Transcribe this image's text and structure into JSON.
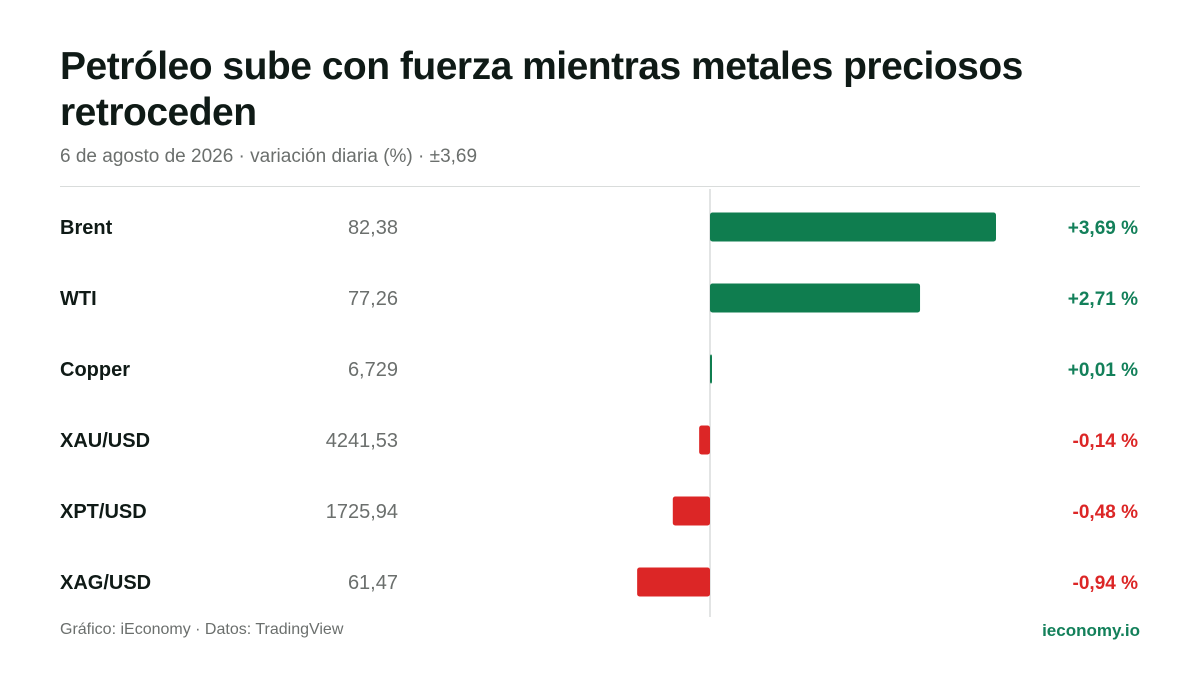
{
  "title": "Petróleo sube con fuerza mientras metales preciosos retroceden",
  "subtitle": "6 de agosto de 2026 · variación diaria (%) · ±3,69",
  "footer": {
    "source": "Gráfico: iEconomy · Datos: TradingView",
    "brand": "ieconomy.io"
  },
  "colors": {
    "positive": "#0f7d4f",
    "negative": "#dc2626",
    "positive_text": "#13805a",
    "negative_text": "#dc2626"
  },
  "chart_data": {
    "type": "bar",
    "orientation": "horizontal",
    "xlim": [
      -3.69,
      3.69
    ],
    "grid": false,
    "categories": [
      "Brent",
      "WTI",
      "Copper",
      "XAU/USD",
      "XPT/USD",
      "XAG/USD"
    ],
    "prices": [
      "82,38",
      "77,26",
      "6,729",
      "4241,53",
      "1725,94",
      "61,47"
    ],
    "values": [
      3.69,
      2.71,
      0.01,
      -0.14,
      -0.48,
      -0.94
    ],
    "value_labels": [
      "+3,69 %",
      "+2,71 %",
      "+0,01 %",
      "-0,14 %",
      "-0,48 %",
      "-0,94 %"
    ]
  }
}
